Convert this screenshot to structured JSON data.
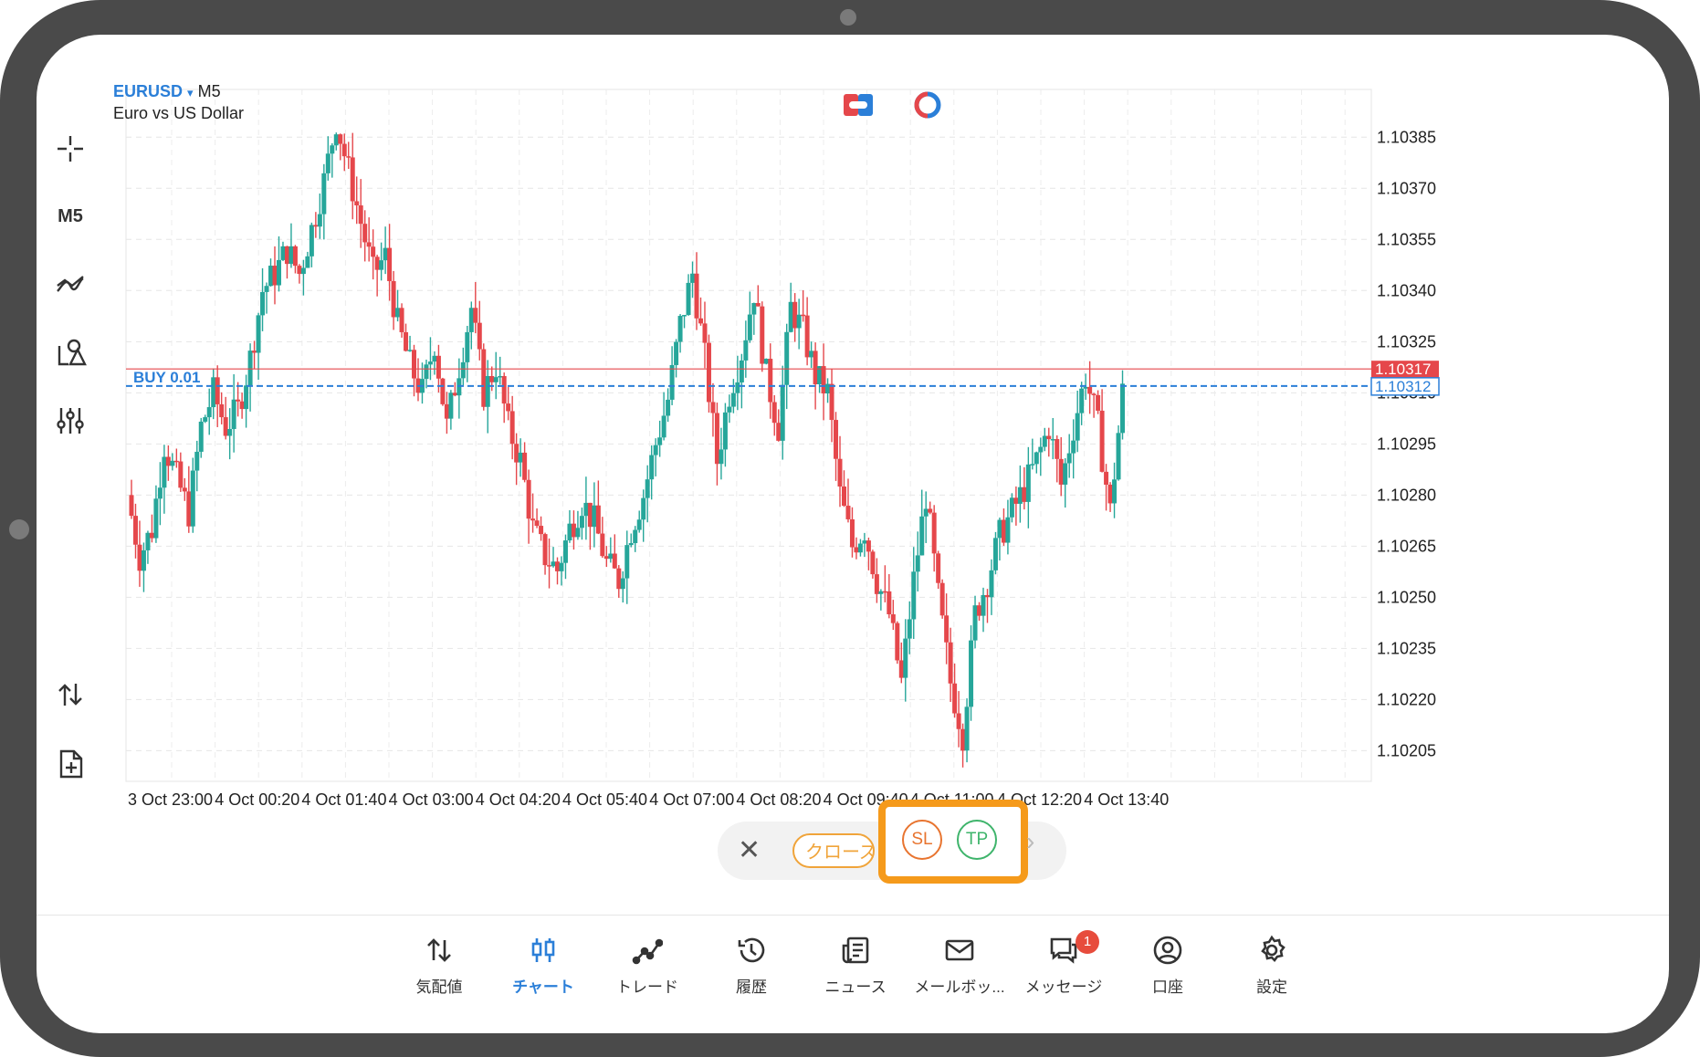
{
  "chart_header": {
    "symbol": "EURUSD",
    "dropdown_glyph": "▾",
    "timeframe": "M5",
    "description": "Euro vs US Dollar"
  },
  "toolbar": {
    "timeframe_label": "M5",
    "icons": [
      "crosshair-icon",
      "timeframe",
      "indicators-icon",
      "objects-icon",
      "settings-sliders-icon",
      "one-click-trading-icon",
      "new-order-icon"
    ]
  },
  "trade_bar": {
    "close_glyph": "✕",
    "close_label": "クローズ",
    "sl_label": "SL",
    "tp_label": "TP",
    "more_glyph": "›"
  },
  "colors": {
    "bull": "#26a69a",
    "bear": "#e5474b",
    "accent": "#2b7fd8",
    "highlight": "#f59a1b",
    "sl": "#e8742f",
    "tp": "#3eb46b"
  },
  "bottom_nav": [
    {
      "label": "気配値",
      "icon": "quotes-icon"
    },
    {
      "label": "チャート",
      "icon": "chart-icon",
      "active": true
    },
    {
      "label": "トレード",
      "icon": "trade-icon"
    },
    {
      "label": "履歴",
      "icon": "history-icon"
    },
    {
      "label": "ニュース",
      "icon": "news-icon"
    },
    {
      "label": "メールボッ...",
      "icon": "mail-icon"
    },
    {
      "label": "メッセージ",
      "icon": "messages-icon",
      "badge": "1"
    },
    {
      "label": "口座",
      "icon": "account-icon"
    },
    {
      "label": "設定",
      "icon": "settings-icon"
    }
  ],
  "chart_data": {
    "type": "candlestick",
    "symbol": "EURUSD",
    "timeframe": "M5",
    "y_ticks": [
      "1.10385",
      "1.10370",
      "1.10355",
      "1.10340",
      "1.10325",
      "1.10310",
      "1.10295",
      "1.10280",
      "1.10265",
      "1.10250",
      "1.10235",
      "1.10220",
      "1.10205"
    ],
    "ylim": [
      1.10196,
      1.10399
    ],
    "x_ticks": [
      "3 Oct 23:00",
      "4 Oct 00:20",
      "4 Oct 01:40",
      "4 Oct 03:00",
      "4 Oct 04:20",
      "4 Oct 05:40",
      "4 Oct 07:00",
      "4 Oct 08:20",
      "4 Oct 09:40",
      "4 Oct 11:00",
      "4 Oct 12:20",
      "4 Oct 13:40"
    ],
    "bid_line": {
      "value": "1.10317"
    },
    "position_line": {
      "label": "BUY 0.01",
      "value": "1.10312"
    },
    "grid": true,
    "close_path": [
      1.1028,
      1.10262,
      1.1027,
      1.10295,
      1.10285,
      1.10275,
      1.103,
      1.1031,
      1.103,
      1.10305,
      1.1032,
      1.1034,
      1.10345,
      1.10352,
      1.10345,
      1.10358,
      1.10372,
      1.1039,
      1.10375,
      1.1036,
      1.10345,
      1.1035,
      1.1033,
      1.10318,
      1.1031,
      1.10325,
      1.103,
      1.10318,
      1.10335,
      1.1031,
      1.10318,
      1.103,
      1.1029,
      1.1027,
      1.10262,
      1.10258,
      1.1027,
      1.10278,
      1.10272,
      1.1026,
      1.10255,
      1.1027,
      1.1028,
      1.10295,
      1.10308,
      1.1033,
      1.10345,
      1.1032,
      1.1029,
      1.1031,
      1.10322,
      1.1034,
      1.10315,
      1.103,
      1.10335,
      1.10328,
      1.10315,
      1.1031,
      1.1028,
      1.10265,
      1.1027,
      1.10255,
      1.10245,
      1.10225,
      1.10255,
      1.1028,
      1.1025,
      1.10225,
      1.1021,
      1.10245,
      1.10255,
      1.10268,
      1.10275,
      1.10282,
      1.1029,
      1.103,
      1.10283,
      1.103,
      1.10315,
      1.103,
      1.10275,
      1.1031
    ]
  }
}
